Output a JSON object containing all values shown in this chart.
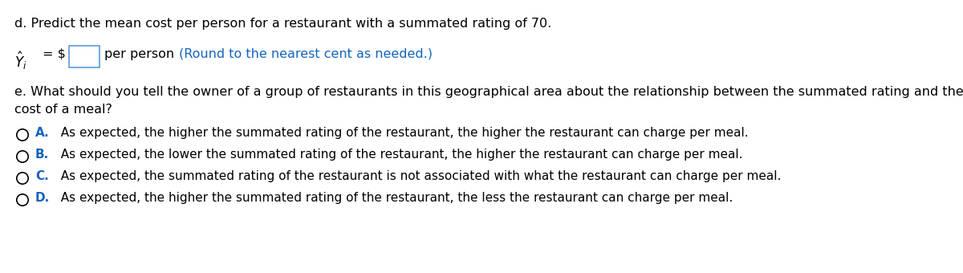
{
  "bg_color": "#ffffff",
  "text_color": "#000000",
  "blue_color": "#1464C0",
  "label_d": "d. Predict the mean cost per person for a restaurant with a summated rating of 70.",
  "label_e_line1": "e. What should you tell the owner of a group of restaurants in this geographical area about the relationship between the summated rating and the",
  "label_e_line2": "cost of a meal?",
  "per_person_black": "per person ",
  "per_person_blue": "(Round to the nearest cent as needed.)",
  "option_A_letter": "A.",
  "option_A_text": "  As expected, the higher the summated rating of the restaurant, the higher the restaurant can charge per meal.",
  "option_B_letter": "B.",
  "option_B_text": "  As expected, the lower the summated rating of the restaurant, the higher the restaurant can charge per meal.",
  "option_C_letter": "C.",
  "option_C_text": "  As expected, the summated rating of the restaurant is not associated with what the restaurant can charge per meal.",
  "option_D_letter": "D.",
  "option_D_text": "  As expected, the higher the summated rating of the restaurant, the less the restaurant can charge per meal.",
  "font_size": 11.5,
  "font_size_small": 11.0
}
